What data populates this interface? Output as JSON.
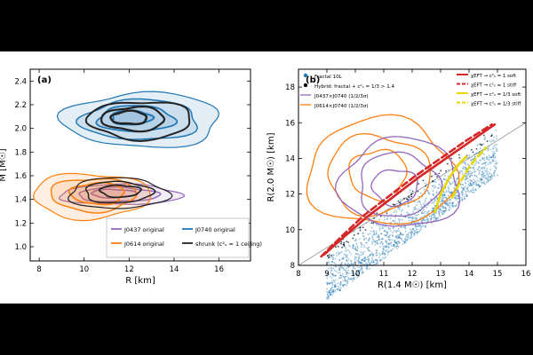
{
  "chart_data": [
    {
      "type": "contour",
      "panel_label": "(a)",
      "xlabel": "R   [km]",
      "ylabel": "M   [M☉]",
      "xlim": [
        7.6,
        17.4
      ],
      "ylim": [
        0.88,
        2.5
      ],
      "xticks": [
        8,
        10,
        12,
        14,
        16
      ],
      "yticks": [
        1.0,
        1.2,
        1.4,
        1.6,
        1.8,
        2.0,
        2.2,
        2.4
      ],
      "legend_position": "lower-right",
      "series": [
        {
          "name": "J0437 original",
          "color": "#9467bd",
          "contours": [
            {
              "cx": 11.6,
              "cy": 1.44,
              "rx": 2.7,
              "ry": 0.085
            },
            {
              "cx": 11.5,
              "cy": 1.44,
              "rx": 1.8,
              "ry": 0.06
            },
            {
              "cx": 11.3,
              "cy": 1.45,
              "rx": 1.0,
              "ry": 0.035
            }
          ]
        },
        {
          "name": "J0614 original",
          "color": "#ff7f0e",
          "contours": [
            {
              "cx": 10.3,
              "cy": 1.43,
              "rx": 2.6,
              "ry": 0.19
            },
            {
              "cx": 10.4,
              "cy": 1.44,
              "rx": 1.9,
              "ry": 0.14
            },
            {
              "cx": 10.6,
              "cy": 1.45,
              "rx": 1.2,
              "ry": 0.09
            }
          ]
        },
        {
          "name": "J0740 original",
          "color": "#1f77b4",
          "contours": [
            {
              "cx": 12.6,
              "cy": 2.07,
              "rx": 3.5,
              "ry": 0.23
            },
            {
              "cx": 12.5,
              "cy": 2.07,
              "rx": 2.6,
              "ry": 0.17
            },
            {
              "cx": 12.3,
              "cy": 2.08,
              "rx": 1.7,
              "ry": 0.11
            },
            {
              "cx": 12.1,
              "cy": 2.09,
              "rx": 0.9,
              "ry": 0.06
            }
          ]
        },
        {
          "name": "shrunk (c²ₛ = 1 ceiling)",
          "color": "#222222",
          "contours": [
            {
              "cx": 11.5,
              "cy": 1.45,
              "rx": 2.2,
              "ry": 0.13
            },
            {
              "cx": 11.5,
              "cy": 1.46,
              "rx": 1.5,
              "ry": 0.09
            },
            {
              "cx": 11.6,
              "cy": 1.47,
              "rx": 0.9,
              "ry": 0.05
            },
            {
              "cx": 12.5,
              "cy": 2.07,
              "rx": 2.3,
              "ry": 0.16
            },
            {
              "cx": 12.2,
              "cy": 2.08,
              "rx": 1.4,
              "ry": 0.1
            },
            {
              "cx": 12.0,
              "cy": 2.09,
              "rx": 0.8,
              "ry": 0.055
            }
          ]
        }
      ]
    },
    {
      "type": "scatter",
      "panel_label": "(b)",
      "xlabel": "R(1.4 M☉)   [km]",
      "ylabel": "R(2.0 M☉)   [km]",
      "xlim": [
        8,
        16
      ],
      "ylim": [
        8,
        19
      ],
      "xticks": [
        8,
        9,
        10,
        11,
        12,
        13,
        14,
        15,
        16
      ],
      "yticks": [
        8,
        10,
        12,
        14,
        16,
        18
      ],
      "reference_line": {
        "x": [
          8,
          16
        ],
        "y": [
          8,
          16
        ]
      },
      "scatter_band": {
        "x_start": 9.0,
        "x_end": 15.0,
        "upper_y_start": 8.9,
        "upper_y_end": 15.9,
        "lower_offset_mean": 1.3,
        "color": "#1f77b4"
      },
      "legend_left": {
        "position": "top-left",
        "entries": [
          {
            "name": "Fractal 10L",
            "marker": "dot",
            "color": "#1f77b4"
          },
          {
            "name": "Hybrid: fractal + c²ₛ = 1/3   >  1.4",
            "marker": "dot",
            "color": "#000000"
          },
          {
            "name": "J0437×J0740 (1/2/3σ)",
            "marker": "line",
            "color": "#9467bd"
          },
          {
            "name": "J0614×J0740 (1/2/3σ)",
            "marker": "line",
            "color": "#ff7f0e"
          }
        ]
      },
      "legend_right": {
        "position": "top-right",
        "entries": [
          {
            "name": "χEFT → c²ₛ = 1 soft",
            "style": "solid",
            "color": "#d62728"
          },
          {
            "name": "χEFT → c²ₛ = 1 stiff",
            "style": "dashed",
            "color": "#d62728"
          },
          {
            "name": "χEFT → c²ₛ = 1/3 soft",
            "style": "solid",
            "color": "#e6d800"
          },
          {
            "name": "χEFT → c²ₛ = 1/3 stiff",
            "style": "dashed",
            "color": "#e6d800"
          }
        ]
      },
      "contours": [
        {
          "name": "J0614×J0740",
          "color": "#ff7f0e",
          "cx": 10.9,
          "cy": 13.2,
          "rx": 2.6,
          "ry": 3.0
        },
        {
          "name": "J0614×J0740",
          "color": "#ff7f0e",
          "cx": 10.8,
          "cy": 13.1,
          "rx": 1.8,
          "ry": 2.2
        },
        {
          "name": "J0614×J0740",
          "color": "#ff7f0e",
          "cx": 10.8,
          "cy": 13.1,
          "rx": 1.0,
          "ry": 1.4
        },
        {
          "name": "J0437×J0740",
          "color": "#9467bd",
          "cx": 11.6,
          "cy": 12.6,
          "rx": 2.1,
          "ry": 2.5
        },
        {
          "name": "J0437×J0740",
          "color": "#9467bd",
          "cx": 11.5,
          "cy": 12.5,
          "rx": 1.4,
          "ry": 1.8
        },
        {
          "name": "J0437×J0740",
          "color": "#9467bd",
          "cx": 11.4,
          "cy": 12.4,
          "rx": 0.8,
          "ry": 1.0
        }
      ],
      "curves": [
        {
          "name": "χEFT → c²ₛ = 1 soft",
          "color": "#d62728",
          "style": "solid",
          "x": [
            8.9,
            9.6,
            10.4,
            11.3,
            12.2,
            13.1,
            14.0,
            14.9
          ],
          "y": [
            8.6,
            9.6,
            10.7,
            11.8,
            12.9,
            13.9,
            14.9,
            15.9
          ]
        },
        {
          "name": "χEFT → c²ₛ = 1 stiff",
          "color": "#d62728",
          "style": "dashed",
          "x": [
            8.8,
            9.5,
            10.3,
            11.2,
            12.1,
            13.0,
            13.9,
            14.8
          ],
          "y": [
            8.5,
            9.6,
            10.8,
            11.9,
            13.0,
            14.0,
            15.0,
            15.9
          ]
        },
        {
          "name": "χEFT → c²ₛ = 1/3 soft",
          "color": "#e6d800",
          "style": "solid",
          "x": [
            12.8,
            13.0,
            13.3,
            13.6,
            13.9
          ],
          "y": [
            11.0,
            12.0,
            12.9,
            13.6,
            14.1
          ]
        },
        {
          "name": "χEFT → c²ₛ = 1/3 stiff",
          "color": "#e6d800",
          "style": "dashed",
          "x": [
            13.4,
            13.7,
            14.0,
            14.3,
            14.6
          ],
          "y": [
            11.8,
            12.7,
            13.5,
            14.1,
            14.6
          ]
        }
      ]
    }
  ]
}
